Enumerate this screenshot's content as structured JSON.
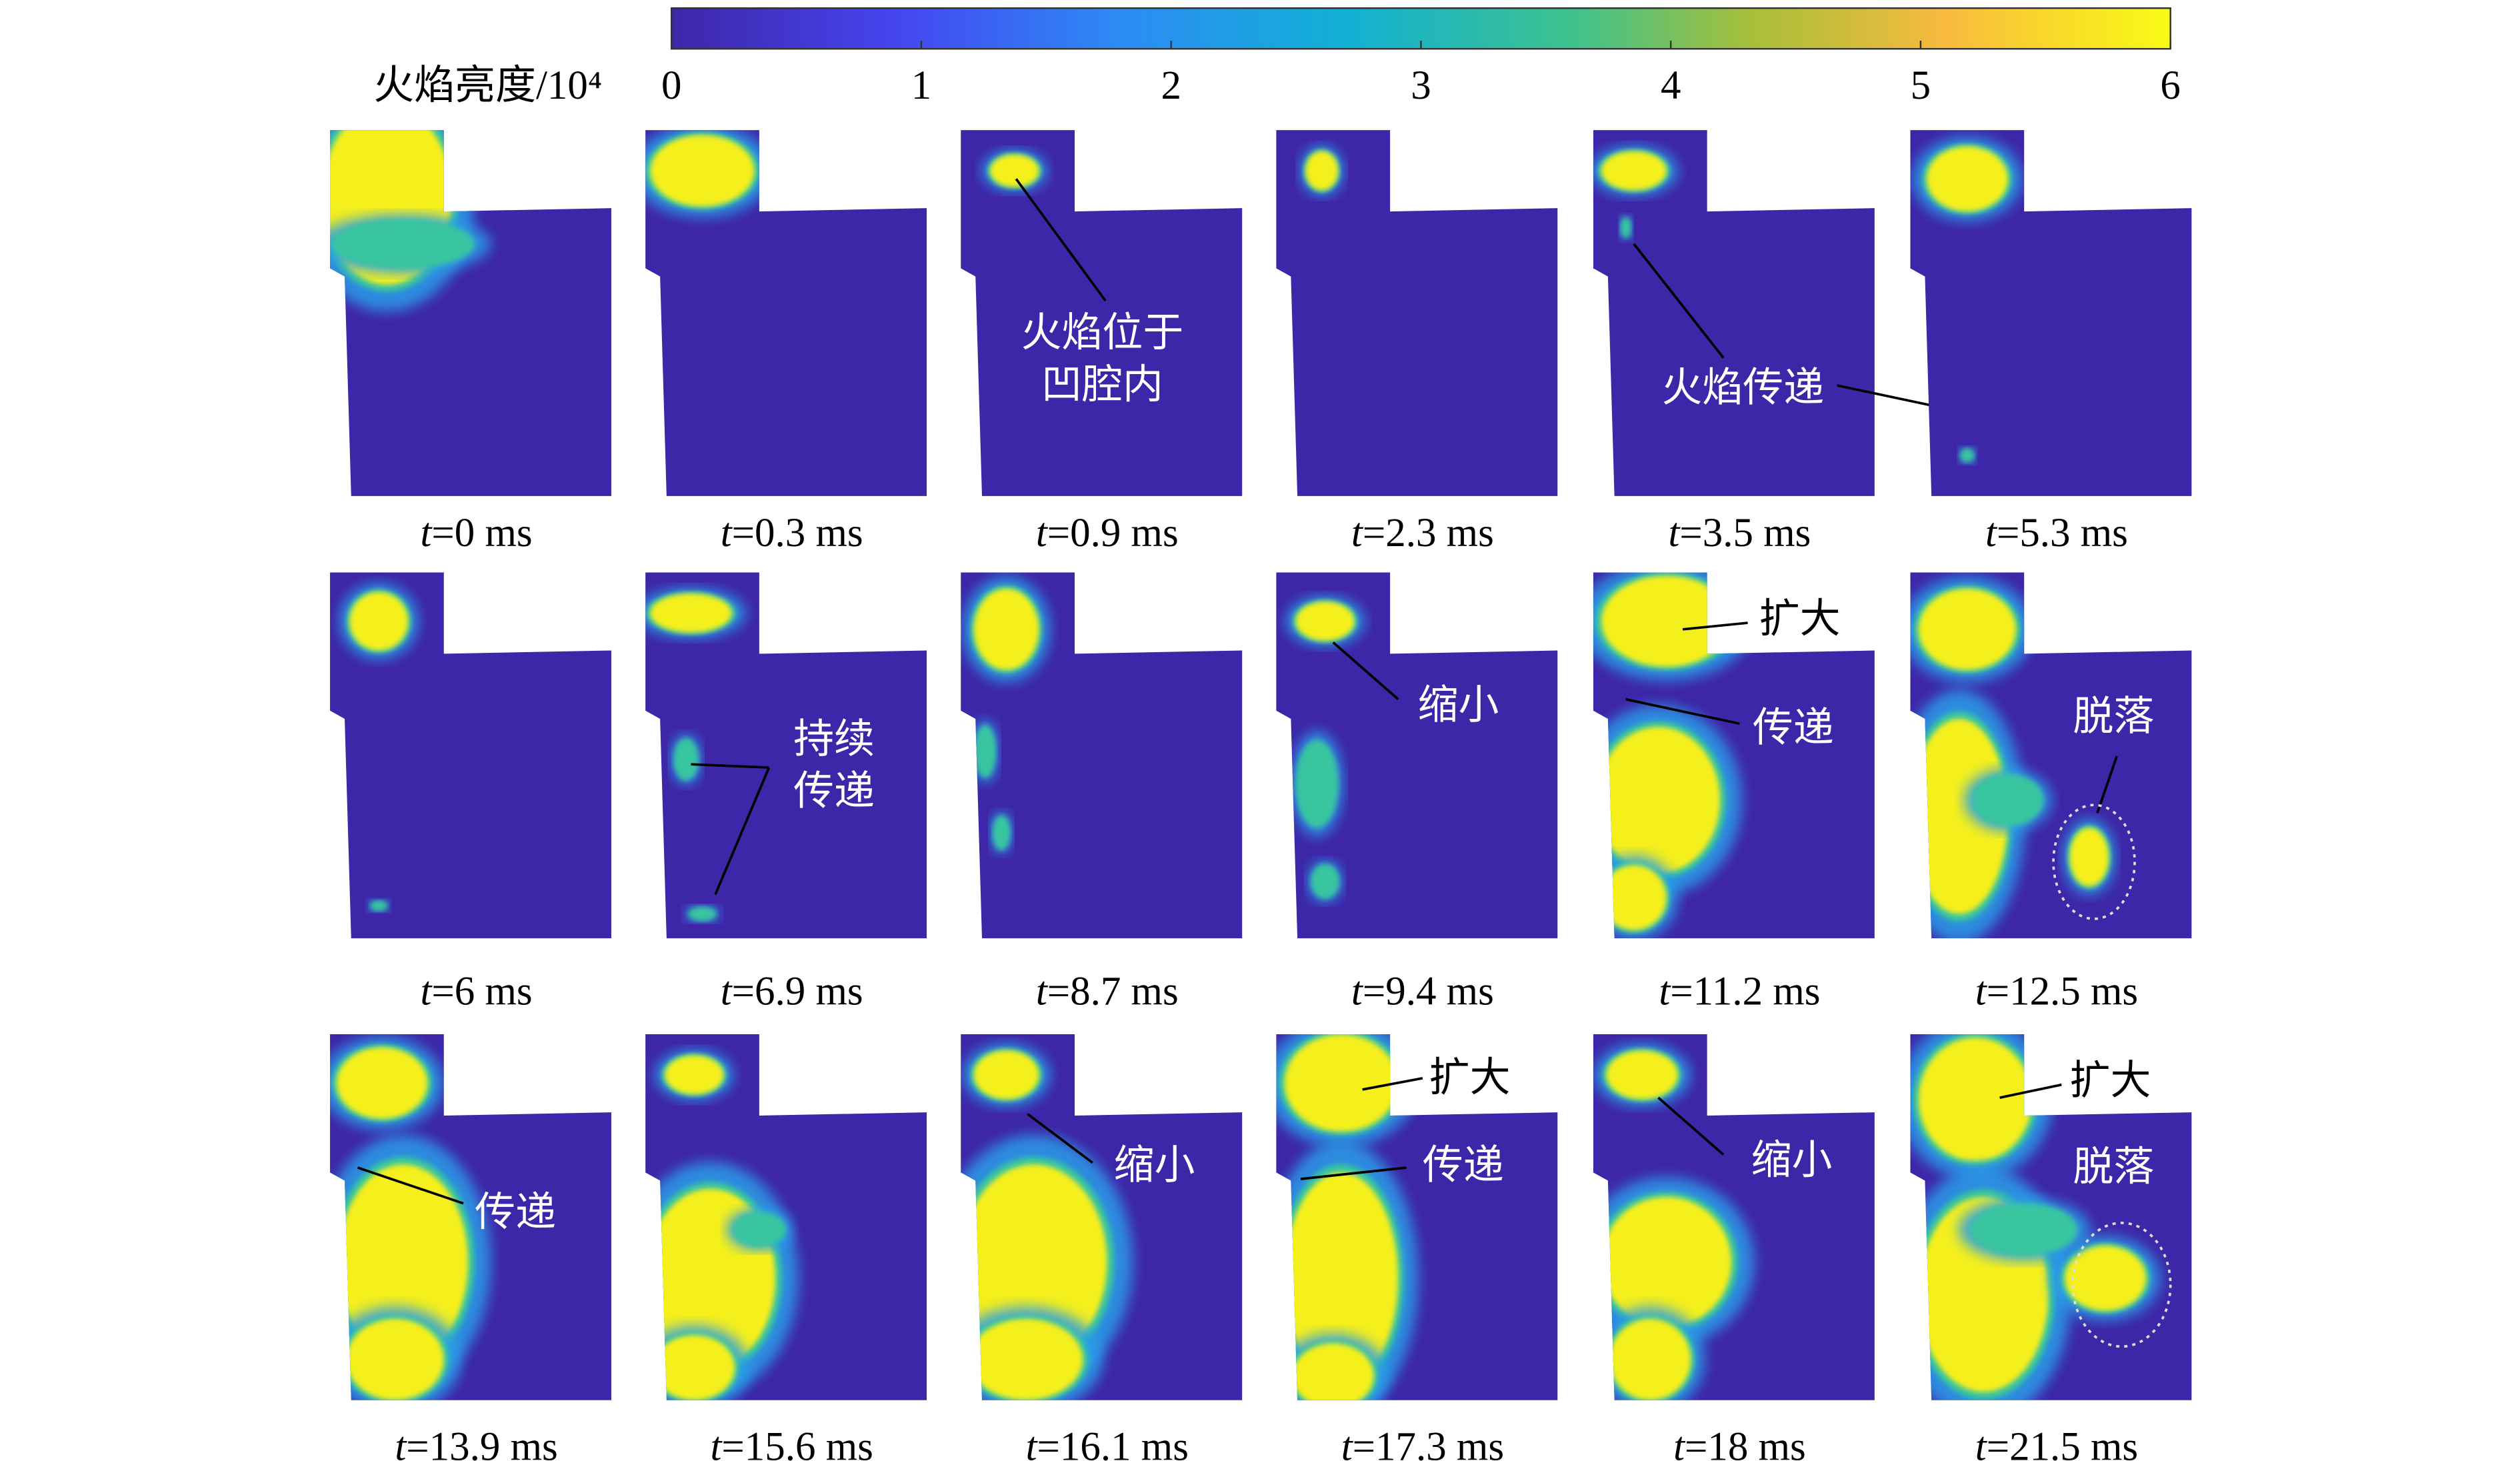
{
  "colorbar": {
    "label": "火焰亮度/10⁴",
    "ticks": [
      0,
      1,
      2,
      3,
      4,
      5,
      6
    ]
  },
  "panels": [
    {
      "time": {
        "var": "t",
        "rest": "=0 ms"
      },
      "annotations": []
    },
    {
      "time": {
        "var": "t",
        "rest": "=0.3 ms"
      },
      "annotations": []
    },
    {
      "time": {
        "var": "t",
        "rest": "=0.9 ms"
      },
      "annotations": [
        {
          "lines": [
            "火焰位于",
            "凹腔内"
          ]
        }
      ]
    },
    {
      "time": {
        "var": "t",
        "rest": "=2.3 ms"
      },
      "annotations": []
    },
    {
      "time": {
        "var": "t",
        "rest": "=3.5 ms"
      },
      "annotations": [
        {
          "lines": [
            "火焰传递"
          ]
        }
      ]
    },
    {
      "time": {
        "var": "t",
        "rest": "=5.3 ms"
      },
      "annotations": []
    },
    {
      "time": {
        "var": "t",
        "rest": "=6 ms"
      },
      "annotations": []
    },
    {
      "time": {
        "var": "t",
        "rest": "=6.9 ms"
      },
      "annotations": [
        {
          "lines": [
            "持续",
            "传递"
          ]
        }
      ]
    },
    {
      "time": {
        "var": "t",
        "rest": "=8.7 ms"
      },
      "annotations": []
    },
    {
      "time": {
        "var": "t",
        "rest": "=9.4 ms"
      },
      "annotations": [
        {
          "lines": [
            "缩小"
          ]
        }
      ]
    },
    {
      "time": {
        "var": "t",
        "rest": "=11.2 ms"
      },
      "annotations": [
        {
          "lines": [
            "扩大"
          ]
        },
        {
          "lines": [
            "传递"
          ]
        }
      ]
    },
    {
      "time": {
        "var": "t",
        "rest": "=12.5 ms"
      },
      "annotations": [
        {
          "lines": [
            "脱落"
          ]
        }
      ]
    },
    {
      "time": {
        "var": "t",
        "rest": "=13.9 ms"
      },
      "annotations": [
        {
          "lines": [
            "传递"
          ]
        }
      ]
    },
    {
      "time": {
        "var": "t",
        "rest": "=15.6 ms"
      },
      "annotations": []
    },
    {
      "time": {
        "var": "t",
        "rest": "=16.1 ms"
      },
      "annotations": [
        {
          "lines": [
            "缩小"
          ]
        }
      ]
    },
    {
      "time": {
        "var": "t",
        "rest": "=17.3 ms"
      },
      "annotations": [
        {
          "lines": [
            "扩大"
          ]
        },
        {
          "lines": [
            "传递"
          ]
        }
      ]
    },
    {
      "time": {
        "var": "t",
        "rest": "=18 ms"
      },
      "annotations": [
        {
          "lines": [
            "缩小"
          ]
        }
      ]
    },
    {
      "time": {
        "var": "t",
        "rest": "=21.5 ms"
      },
      "annotations": [
        {
          "lines": [
            "扩大"
          ]
        },
        {
          "lines": [
            "脱落"
          ]
        }
      ]
    }
  ]
}
